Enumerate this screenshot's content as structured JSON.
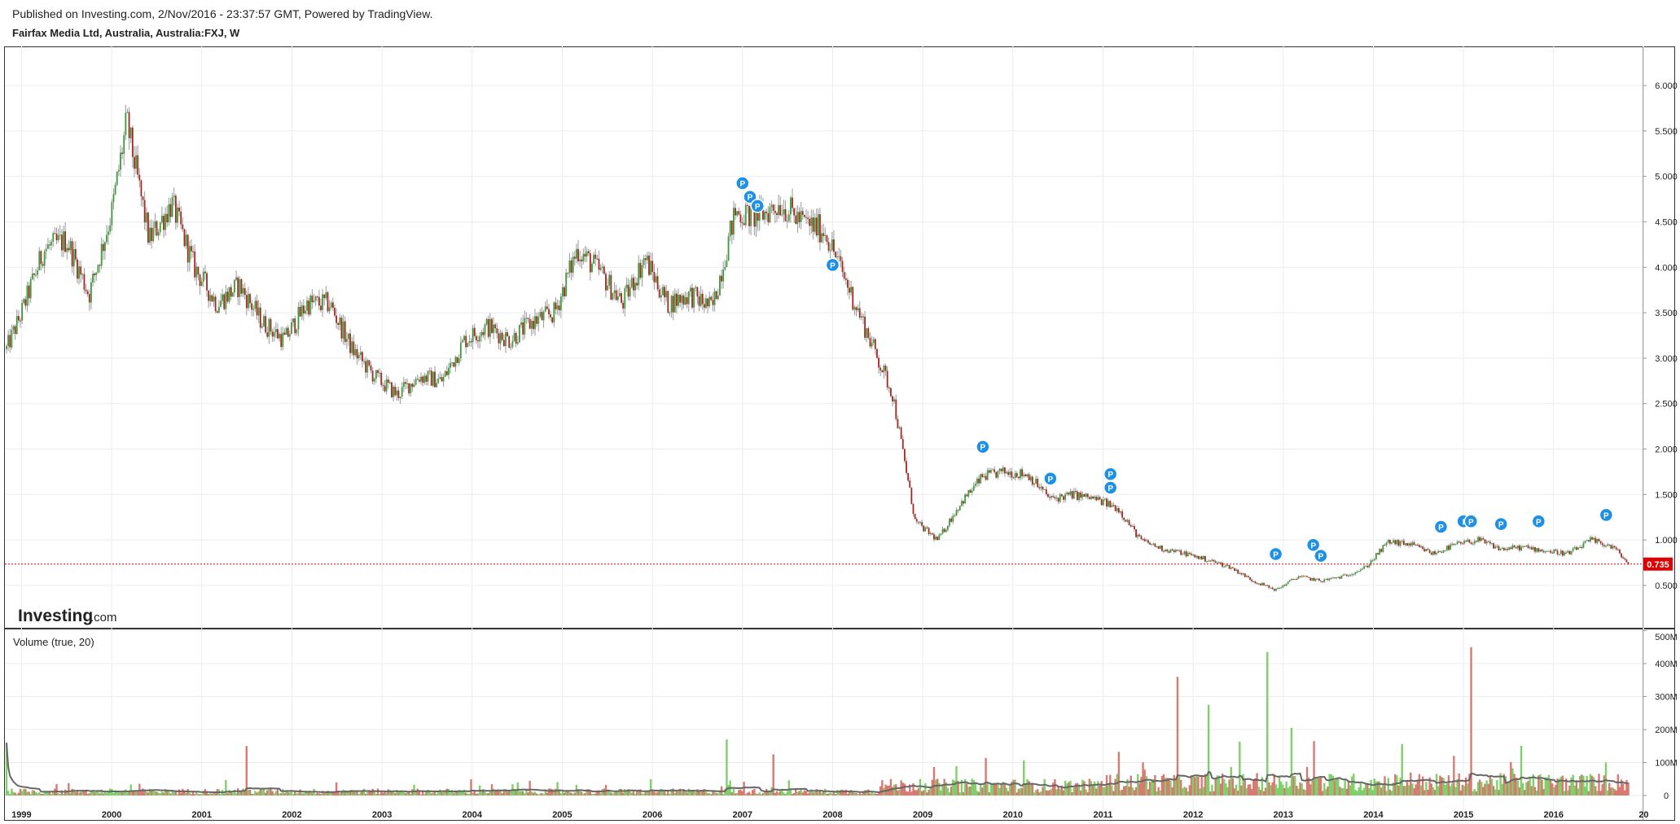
{
  "header": {
    "published": "Published on Investing.com, 2/Nov/2016 - 23:37:57 GMT, Powered by TradingView.",
    "symbol": "Fairfax Media Ltd, Australia, Australia:FXJ, W"
  },
  "logo": {
    "brand": "Investing",
    "suffix": ".com"
  },
  "volume_label": "Volume (true, 20)",
  "colors": {
    "up": "#3a9b3a",
    "down": "#a0281e",
    "vol_up": "#7fd06a",
    "vol_down": "#d97a72",
    "ma": "#666666",
    "last": "#e00000",
    "marker": "#1e90e6"
  },
  "chart_data": [
    {
      "type": "line",
      "subtype": "candlestick-weekly",
      "title": "Fairfax Media Ltd, Australia, Australia:FXJ, W",
      "x": [
        "1998-10",
        "1999-01",
        "1999-04",
        "1999-07",
        "1999-10",
        "2000-01",
        "2000-03",
        "2000-06",
        "2000-09",
        "2000-12",
        "2001-03",
        "2001-06",
        "2001-09",
        "2001-12",
        "2002-03",
        "2002-06",
        "2002-09",
        "2002-12",
        "2003-03",
        "2003-06",
        "2003-09",
        "2003-12",
        "2004-03",
        "2004-06",
        "2004-09",
        "2004-12",
        "2005-03",
        "2005-06",
        "2005-09",
        "2005-12",
        "2006-03",
        "2006-06",
        "2006-09",
        "2006-12",
        "2007-03",
        "2007-06",
        "2007-09",
        "2007-12",
        "2008-03",
        "2008-06",
        "2008-09",
        "2008-12",
        "2009-03",
        "2009-06",
        "2009-09",
        "2009-12",
        "2010-03",
        "2010-06",
        "2010-09",
        "2010-12",
        "2011-03",
        "2011-06",
        "2011-09",
        "2011-12",
        "2012-03",
        "2012-06",
        "2012-09",
        "2012-12",
        "2013-03",
        "2013-06",
        "2013-09",
        "2013-12",
        "2014-03",
        "2014-06",
        "2014-09",
        "2014-12",
        "2015-03",
        "2015-06",
        "2015-09",
        "2015-12",
        "2016-03",
        "2016-06",
        "2016-09",
        "2016-11"
      ],
      "y": [
        2.9,
        3.5,
        4.2,
        4.3,
        3.7,
        4.6,
        5.6,
        4.3,
        4.7,
        4.0,
        3.6,
        3.8,
        3.4,
        3.2,
        3.6,
        3.6,
        3.1,
        2.8,
        2.6,
        2.8,
        2.75,
        3.2,
        3.35,
        3.2,
        3.4,
        3.5,
        4.2,
        3.95,
        3.6,
        4.1,
        3.6,
        3.7,
        3.55,
        4.6,
        4.55,
        4.7,
        4.5,
        4.4,
        3.8,
        3.2,
        2.6,
        1.2,
        1.0,
        1.4,
        1.7,
        1.75,
        1.72,
        1.45,
        1.5,
        1.45,
        1.35,
        1.0,
        0.9,
        0.85,
        0.78,
        0.7,
        0.55,
        0.45,
        0.6,
        0.55,
        0.6,
        0.7,
        0.98,
        0.95,
        0.85,
        0.95,
        1.0,
        0.9,
        0.92,
        0.88,
        0.85,
        1.0,
        0.92,
        0.735
      ],
      "last_price": "0.735",
      "xlim": [
        "1998-11",
        "2016-11"
      ],
      "ylim": [
        0,
        6.5
      ],
      "x_tick_labels": [
        "1999",
        "2000",
        "2001",
        "2002",
        "2003",
        "2004",
        "2005",
        "2006",
        "2007",
        "2008",
        "2009",
        "2010",
        "2011",
        "2012",
        "2013",
        "2014",
        "2015",
        "2016",
        "20"
      ],
      "y_tick_labels": [
        "6.000",
        "5.500",
        "5.000",
        "4.500",
        "4.000",
        "3.500",
        "3.000",
        "2.500",
        "2.000",
        "1.500",
        "1.000",
        "0.500"
      ],
      "grid": true,
      "annotations": [
        {
          "x": "2007-01",
          "y": 4.8,
          "label": "P"
        },
        {
          "x": "2007-02",
          "y": 4.65,
          "label": "P"
        },
        {
          "x": "2007-03",
          "y": 4.55,
          "label": "P"
        },
        {
          "x": "2008-01",
          "y": 3.9,
          "label": "P"
        },
        {
          "x": "2009-09",
          "y": 1.9,
          "label": "P"
        },
        {
          "x": "2010-06",
          "y": 1.55,
          "label": "P"
        },
        {
          "x": "2011-02",
          "y": 1.6,
          "label": "P"
        },
        {
          "x": "2011-02",
          "y": 1.45,
          "label": "P"
        },
        {
          "x": "2012-12",
          "y": 0.72,
          "label": "P"
        },
        {
          "x": "2013-05",
          "y": 0.82,
          "label": "P"
        },
        {
          "x": "2013-06",
          "y": 0.7,
          "label": "P"
        },
        {
          "x": "2014-10",
          "y": 1.02,
          "label": "P"
        },
        {
          "x": "2015-01",
          "y": 1.08,
          "label": "I"
        },
        {
          "x": "2015-02",
          "y": 1.08,
          "label": "P"
        },
        {
          "x": "2015-06",
          "y": 1.05,
          "label": "P"
        },
        {
          "x": "2015-11",
          "y": 1.08,
          "label": "P"
        },
        {
          "x": "2016-08",
          "y": 1.15,
          "label": "P"
        }
      ]
    },
    {
      "type": "bar",
      "title": "Volume (true, 20)",
      "ylim": [
        0,
        500
      ],
      "y_unit": "M",
      "y_tick_labels": [
        "500M",
        "400M",
        "300M",
        "200M",
        "100M",
        "0"
      ],
      "x": [
        "1998-11",
        "2001-07",
        "2006-11",
        "2007-05",
        "2011-11",
        "2012-03",
        "2012-11",
        "2013-02",
        "2013-05",
        "2015-02",
        "2016-08"
      ],
      "values": [
        160,
        150,
        170,
        125,
        360,
        275,
        435,
        205,
        165,
        450,
        100
      ],
      "baseline_average": 25,
      "ma_period": 20
    }
  ]
}
